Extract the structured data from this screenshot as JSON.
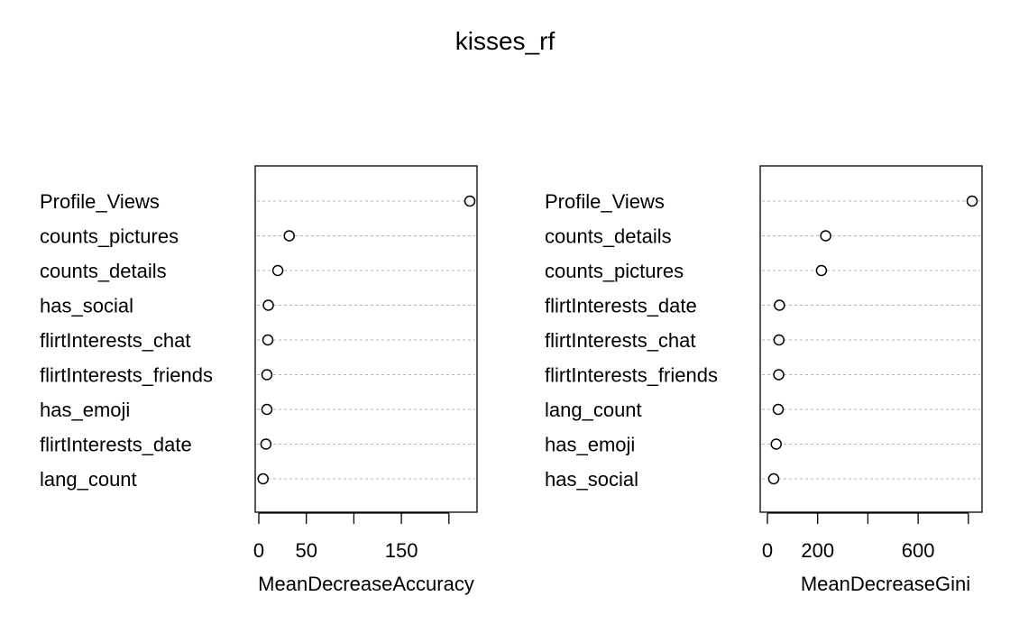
{
  "title": "kisses_rf",
  "chart_data": [
    {
      "type": "scatter",
      "subtype": "dotchart",
      "xlabel": "MeanDecreaseAccuracy",
      "xlim": [
        0,
        228
      ],
      "xticks": [
        0,
        50,
        100,
        150,
        200
      ],
      "xtick_labels": [
        "0",
        "50",
        "",
        "150",
        ""
      ],
      "categories": [
        "Profile_Views",
        "counts_pictures",
        "counts_details",
        "has_social",
        "flirtInterests_chat",
        "flirtInterests_friends",
        "has_emoji",
        "flirtInterests_date",
        "lang_count"
      ],
      "values": [
        222,
        32,
        20,
        10,
        9.5,
        8.5,
        8.5,
        7.5,
        4.5
      ],
      "grid": true
    },
    {
      "type": "scatter",
      "subtype": "dotchart",
      "xlabel": "MeanDecreaseGini",
      "xlim": [
        0,
        840
      ],
      "xticks": [
        0,
        200,
        400,
        600,
        800
      ],
      "xtick_labels": [
        "0",
        "200",
        "",
        "600",
        ""
      ],
      "categories": [
        "Profile_Views",
        "counts_details",
        "counts_pictures",
        "flirtInterests_date",
        "flirtInterests_chat",
        "flirtInterests_friends",
        "lang_count",
        "has_emoji",
        "has_social"
      ],
      "values": [
        815,
        232,
        215,
        48,
        46,
        45,
        43,
        35,
        25
      ],
      "grid": true
    }
  ]
}
